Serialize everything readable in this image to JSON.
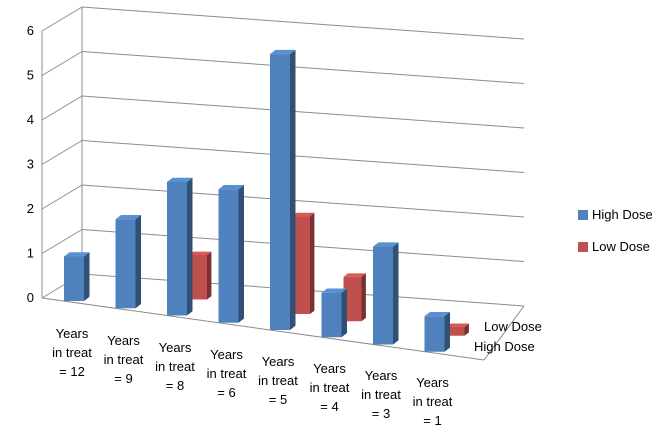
{
  "chart_data": {
    "type": "bar",
    "style": "3d-column",
    "categories": [
      [
        "Years",
        "in treat",
        "= 12"
      ],
      [
        "Years",
        "in treat",
        "= 9"
      ],
      [
        "Years",
        "in treat",
        "= 8"
      ],
      [
        "Years",
        "in treat",
        "= 6"
      ],
      [
        "Years",
        "in treat",
        "= 5"
      ],
      [
        "Years",
        "in treat",
        "= 4"
      ],
      [
        "Years",
        "in treat",
        "= 3"
      ],
      [
        "Years",
        "in treat",
        "= 1"
      ]
    ],
    "series": [
      {
        "name": "High Dose",
        "color": "#4f81bd",
        "values": [
          1,
          2,
          3,
          3,
          6.2,
          1,
          2.2,
          0.8
        ]
      },
      {
        "name": "Low Dose",
        "color": "#c0504d",
        "values": [
          0,
          0,
          1,
          0,
          2.2,
          1,
          0,
          0.2
        ]
      }
    ],
    "depth_labels": [
      "Low Dose",
      "High Dose"
    ],
    "yticks": [
      "0",
      "1",
      "2",
      "3",
      "4",
      "5",
      "6"
    ],
    "ylim": [
      0,
      6
    ],
    "grid": true,
    "legend": "right"
  }
}
